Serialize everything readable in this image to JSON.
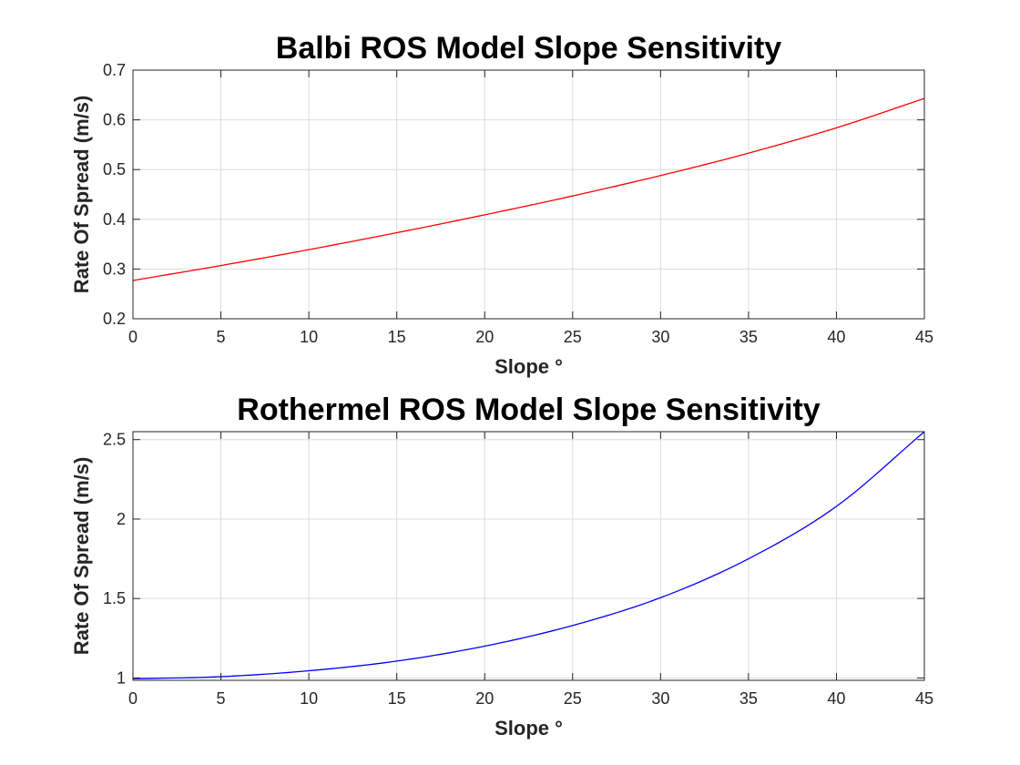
{
  "chart_data": [
    {
      "type": "line",
      "title": "Balbi ROS Model Slope Sensitivity",
      "xlabel": "Slope °",
      "ylabel": "Rate Of Spread (m/s)",
      "xlim": [
        0,
        45
      ],
      "ylim": [
        0.2,
        0.7
      ],
      "xticks": [
        "0",
        "5",
        "10",
        "15",
        "20",
        "25",
        "30",
        "35",
        "40",
        "45"
      ],
      "yticks": [
        "0.2",
        "0.3",
        "0.4",
        "0.5",
        "0.6",
        "0.7"
      ],
      "grid": true,
      "series": [
        {
          "color": "#ff0000",
          "x": [
            0,
            5,
            10,
            15,
            20,
            25,
            30,
            35,
            40,
            45
          ],
          "y": [
            0.277,
            0.307,
            0.339,
            0.373,
            0.409,
            0.447,
            0.488,
            0.533,
            0.584,
            0.643
          ]
        }
      ]
    },
    {
      "type": "line",
      "title": "Rothermel ROS Model Slope Sensitivity",
      "xlabel": "Slope °",
      "ylabel": "Rate Of Spread (m/s)",
      "xlim": [
        0,
        45
      ],
      "ylim": [
        0.985,
        2.55
      ],
      "xticks": [
        "0",
        "5",
        "10",
        "15",
        "20",
        "25",
        "30",
        "35",
        "40",
        "45"
      ],
      "yticks": [
        "1",
        "1.5",
        "2",
        "2.5"
      ],
      "grid": true,
      "series": [
        {
          "color": "#0000ff",
          "x": [
            0,
            5,
            10,
            15,
            20,
            25,
            30,
            35,
            40,
            45
          ],
          "y": [
            0.995,
            1.008,
            1.045,
            1.106,
            1.2,
            1.33,
            1.505,
            1.75,
            2.08,
            2.55
          ]
        }
      ]
    }
  ]
}
